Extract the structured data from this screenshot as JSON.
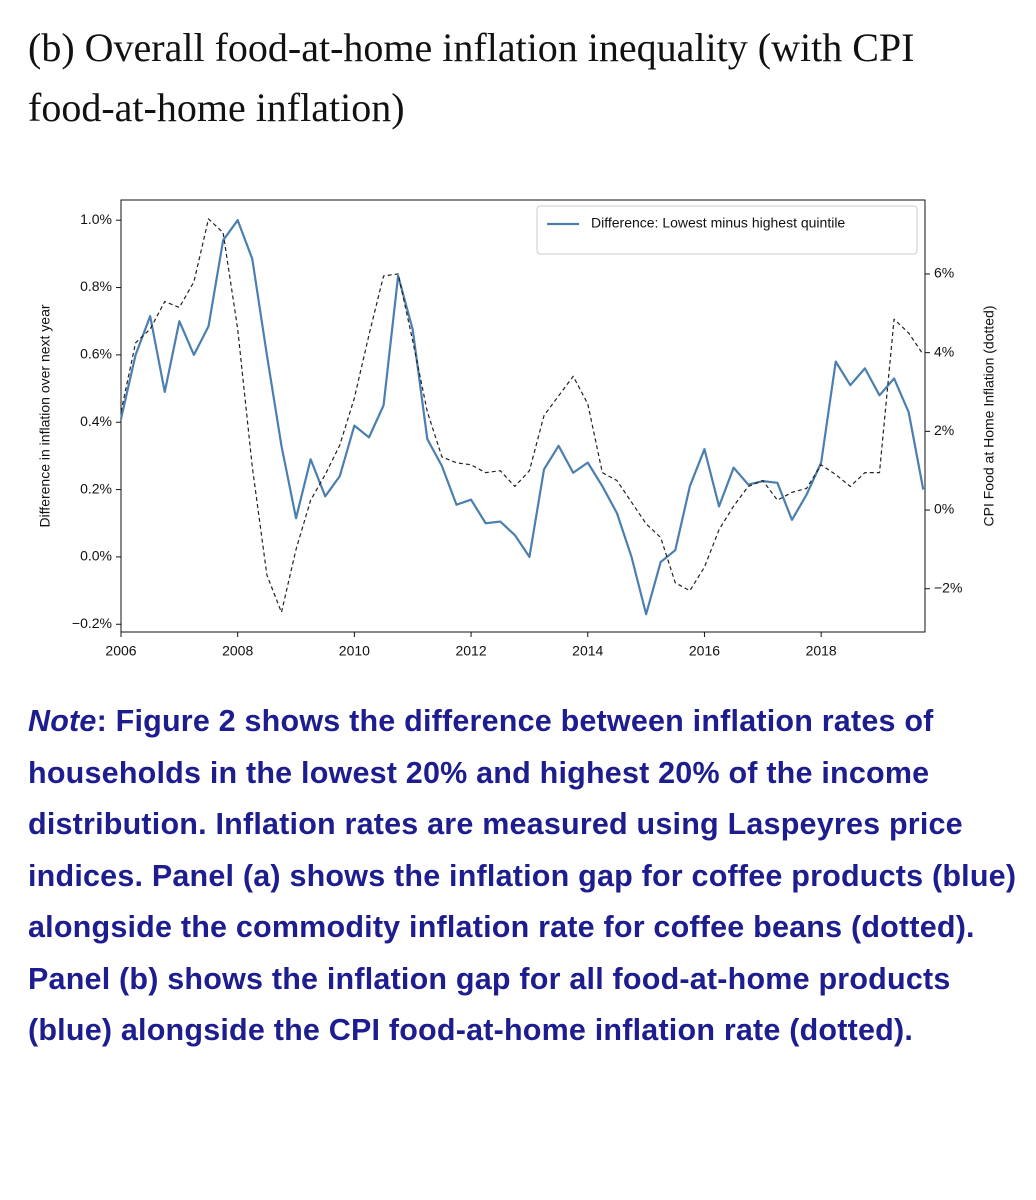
{
  "chart_data": {
    "type": "line",
    "title": "(b) Overall food-at-home inflation inequality (with CPI food-at-home inflation)",
    "ylabel": "Difference in inflation over next year",
    "y2label": "CPI Food at Home Inflation (dotted)",
    "x": [
      2006,
      2006.25,
      2006.5,
      2006.75,
      2007,
      2007.25,
      2007.5,
      2007.75,
      2008,
      2008.25,
      2008.5,
      2008.75,
      2009,
      2009.25,
      2009.5,
      2009.75,
      2010,
      2010.25,
      2010.5,
      2010.75,
      2011,
      2011.25,
      2011.5,
      2011.75,
      2012,
      2012.25,
      2012.5,
      2012.75,
      2013,
      2013.25,
      2013.5,
      2013.75,
      2014,
      2014.25,
      2014.5,
      2014.75,
      2015,
      2015.25,
      2015.5,
      2015.75,
      2016,
      2016.25,
      2016.5,
      2016.75,
      2017,
      2017.25,
      2017.5,
      2017.75,
      2018,
      2018.25,
      2018.5,
      2018.75,
      2019,
      2019.25,
      2019.5,
      2019.75
    ],
    "series": [
      {
        "name": "Difference: Lowest minus highest quintile",
        "color": "#4a7fb0",
        "style": "solid",
        "values": [
          0.41,
          0.6,
          0.715,
          0.49,
          0.7,
          0.6,
          0.685,
          0.94,
          1.0,
          0.885,
          0.6,
          0.33,
          0.115,
          0.29,
          0.18,
          0.24,
          0.39,
          0.355,
          0.45,
          0.835,
          0.675,
          0.35,
          0.27,
          0.155,
          0.17,
          0.1,
          0.105,
          0.065,
          0.0,
          0.26,
          0.33,
          0.25,
          0.28,
          0.21,
          0.13,
          0.0,
          -0.17,
          -0.015,
          0.02,
          0.21,
          0.32,
          0.15,
          0.265,
          0.215,
          0.225,
          0.22,
          0.11,
          0.185,
          0.28,
          0.58,
          0.51,
          0.56,
          0.48,
          0.53,
          0.43,
          0.2
        ]
      },
      {
        "color": "#222222",
        "style": "dashed",
        "axis": "y2",
        "values": [
          2.5,
          4.25,
          4.6,
          5.3,
          5.15,
          5.8,
          7.4,
          7.05,
          4.6,
          1.1,
          -1.65,
          -2.6,
          -1.0,
          0.25,
          0.9,
          1.65,
          2.85,
          4.45,
          5.95,
          6.0,
          4.3,
          2.5,
          1.35,
          1.2,
          1.15,
          0.95,
          1.0,
          0.6,
          1.0,
          2.4,
          2.9,
          3.4,
          2.7,
          0.95,
          0.75,
          0.2,
          -0.35,
          -0.7,
          -1.85,
          -2.05,
          -1.45,
          -0.5,
          0.1,
          0.6,
          0.75,
          0.25,
          0.45,
          0.55,
          1.15,
          0.9,
          0.6,
          0.95,
          0.95,
          4.85,
          4.5,
          3.95
        ]
      }
    ],
    "xlim": [
      2006,
      2019.78
    ],
    "xticks": [
      2006,
      2008,
      2010,
      2012,
      2014,
      2016,
      2018
    ],
    "ylim": [
      -0.223,
      1.06
    ],
    "yticks": [
      {
        "value": -0.2,
        "label": "−0.2%"
      },
      {
        "value": 0,
        "label": "0.0%"
      },
      {
        "value": 0.2,
        "label": "0.2%"
      },
      {
        "value": 0.4,
        "label": "0.4%"
      },
      {
        "value": 0.6,
        "label": "0.6%"
      },
      {
        "value": 0.8,
        "label": "0.8%"
      },
      {
        "value": 1.0,
        "label": "1.0%"
      }
    ],
    "y2lim": [
      -3.1,
      7.88
    ],
    "y2ticks": [
      {
        "value": -2,
        "label": "−2%"
      },
      {
        "value": 0,
        "label": "0%"
      },
      {
        "value": 2,
        "label": "2%"
      },
      {
        "value": 4,
        "label": "4%"
      },
      {
        "value": 6,
        "label": "6%"
      }
    ],
    "grid": false,
    "legend": "upper right"
  },
  "note": {
    "lead": "Note",
    "text": ": Figure 2 shows the difference between inflation rates of households in the lowest 20% and highest 20% of the income distribution. Inflation rates are measured using Laspeyres price indices. Panel (a) shows the inflation gap for coffee products (blue) alongside the commodity inflation rate for coffee beans (dotted). Panel (b) shows the inflation gap for all food-at-home products (blue) alongside the CPI food-at-home inflation rate (dotted)."
  }
}
